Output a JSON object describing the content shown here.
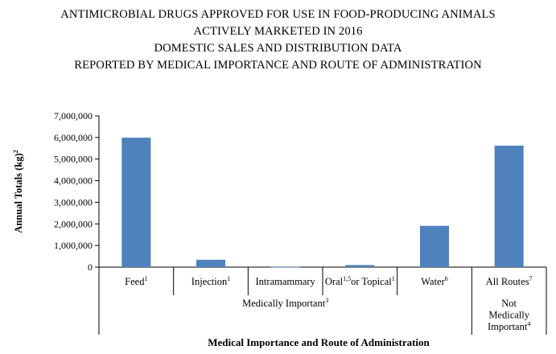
{
  "title_lines": [
    "ANTIMICROBIAL DRUGS APPROVED FOR USE IN FOOD-PRODUCING ANIMALS",
    "ACTIVELY MARKETED IN 2016",
    "DOMESTIC SALES AND DISTRIBUTION DATA",
    "REPORTED BY MEDICAL IMPORTANCE AND ROUTE OF ADMINISTRATION"
  ],
  "chart_data": {
    "type": "bar",
    "ylabel": {
      "text": "Annual Totals (kg)",
      "sup": "2"
    },
    "xlabel": "Medical Importance and Route of Administration",
    "ylim": [
      0,
      7000000
    ],
    "yticks": [
      0,
      1000000,
      2000000,
      3000000,
      4000000,
      5000000,
      6000000,
      7000000
    ],
    "ytick_labels": [
      "0",
      "1,000,000",
      "2,000,000",
      "3,000,000",
      "4,000,000",
      "5,000,000",
      "6,000,000",
      "7,000,000"
    ],
    "bar_color": "#4f81bd",
    "grid": false,
    "categories": [
      {
        "parts": [
          {
            "t": "Feed"
          },
          {
            "t": "1",
            "sup": true
          }
        ]
      },
      {
        "parts": [
          {
            "t": "Injection"
          },
          {
            "t": "1",
            "sup": true
          }
        ]
      },
      {
        "parts": [
          {
            "t": "Intramammary"
          }
        ]
      },
      {
        "parts": [
          {
            "t": "Oral"
          },
          {
            "t": "1,5",
            "sup": true
          },
          {
            "t": "or Topical"
          },
          {
            "t": "1",
            "sup": true
          }
        ]
      },
      {
        "parts": [
          {
            "t": "Water"
          },
          {
            "t": "6",
            "sup": true
          }
        ]
      },
      {
        "parts": [
          {
            "t": "All Routes"
          },
          {
            "t": "7",
            "sup": true
          }
        ]
      }
    ],
    "values": [
      5990000,
      340000,
      12000,
      95000,
      1910000,
      5620000
    ],
    "groups": [
      {
        "lines": [
          [
            {
              "t": "Medically Important"
            },
            {
              "t": "3",
              "sup": true
            }
          ]
        ],
        "from": 0,
        "to": 4
      },
      {
        "lines": [
          [
            {
              "t": "Not"
            }
          ],
          [
            {
              "t": "Medically"
            }
          ],
          [
            {
              "t": "Important"
            },
            {
              "t": "4",
              "sup": true
            }
          ]
        ],
        "from": 5,
        "to": 5
      }
    ]
  }
}
